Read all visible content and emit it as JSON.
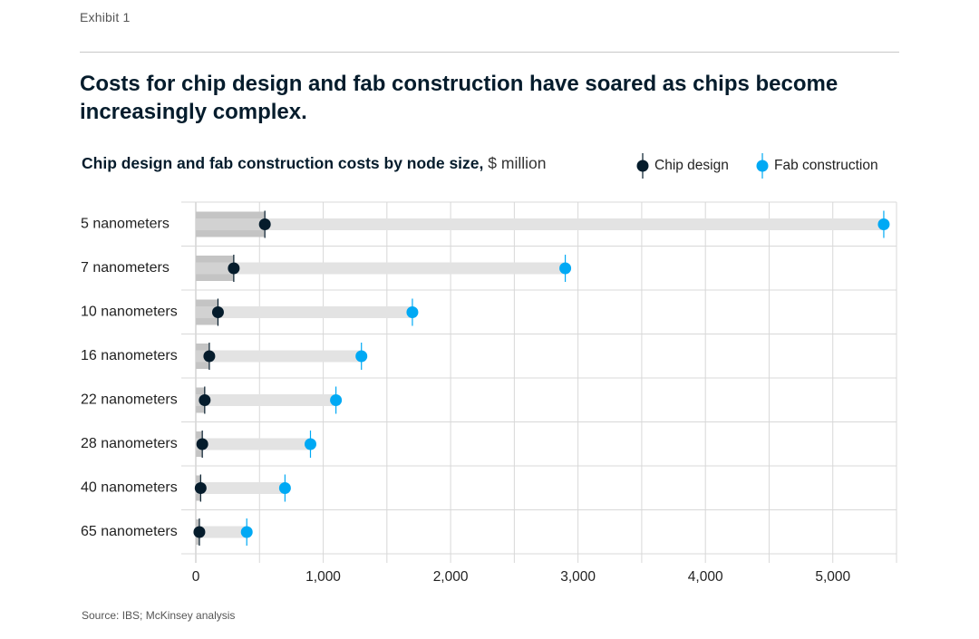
{
  "exhibit_label": "Exhibit 1",
  "headline": "Costs for chip design and fab construction have soared as chips become increasingly complex.",
  "chart_title_bold": "Chip design and fab construction costs by node size,",
  "chart_title_unit": "$ million",
  "source": "Source: IBS; McKinsey analysis",
  "colors": {
    "chip_design": "#051c2c",
    "fab_construction": "#00a9f4",
    "range_bar": "#e3e3e3",
    "chip_bar": "#c4c4c4",
    "grid": "#d8d8d8"
  },
  "chart_data": {
    "type": "dot-range",
    "categories": [
      "5 nanometers",
      "7 nanometers",
      "10 nanometers",
      "16 nanometers",
      "22 nanometers",
      "28 nanometers",
      "40 nanometers",
      "65 nanometers"
    ],
    "series": [
      {
        "name": "Chip design",
        "values": [
          542,
          298,
          174,
          106,
          70,
          51,
          38,
          28
        ]
      },
      {
        "name": "Fab construction",
        "values": [
          5400,
          2900,
          1700,
          1300,
          1100,
          900,
          700,
          400
        ]
      }
    ],
    "xlim": [
      0,
      5500
    ],
    "xticks": [
      0,
      1000,
      2000,
      3000,
      4000,
      5000
    ],
    "xtick_labels": [
      "0",
      "1,000",
      "2,000",
      "3,000",
      "4,000",
      "5,000"
    ],
    "legend_position": "top-right",
    "grid": true
  }
}
